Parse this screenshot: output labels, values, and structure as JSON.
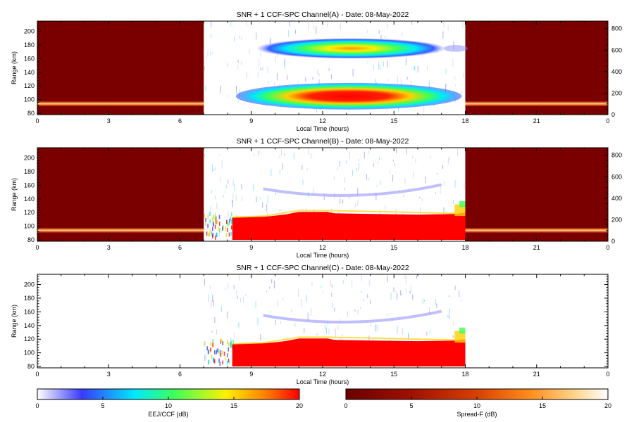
{
  "chart_data": [
    {
      "type": "heatmap",
      "title": "SNR + 1 CCF-SPC Channel(A) - Date: 08-May-2022",
      "xlabel": "Local Time (hours)",
      "ylabel": "Range (km)",
      "xlim": [
        0,
        24
      ],
      "ylim": [
        78,
        215
      ],
      "xticks": [
        "0",
        "3",
        "6",
        "9",
        "12",
        "15",
        "18",
        "21",
        "0"
      ],
      "yticks": [
        "80",
        "100",
        "120",
        "140",
        "160",
        "180",
        "200"
      ],
      "y2lim": [
        0,
        870
      ],
      "y2ticks": [
        "0",
        "200",
        "400",
        "600",
        "800"
      ],
      "regions": [
        {
          "kind": "spread-f",
          "x": [
            0,
            7
          ],
          "note_layer_range_km": [
            93,
            97
          ]
        },
        {
          "kind": "eej-ccf",
          "x": [
            7,
            18
          ]
        },
        {
          "kind": "spread-f",
          "x": [
            18,
            24
          ],
          "note_layer_range_km": [
            91,
            97
          ]
        }
      ]
    },
    {
      "type": "heatmap",
      "title": "SNR + 1 CCF-SPC Channel(B) - Date: 08-May-2022",
      "xlabel": "Local Time (hours)",
      "ylabel": "Range (km)",
      "xlim": [
        0,
        24
      ],
      "ylim": [
        78,
        215
      ],
      "xticks": [
        "0",
        "3",
        "6",
        "9",
        "12",
        "15",
        "18",
        "21",
        "0"
      ],
      "yticks": [
        "80",
        "100",
        "120",
        "140",
        "160",
        "180",
        "200"
      ],
      "y2lim": [
        0,
        870
      ],
      "y2ticks": [
        "0",
        "200",
        "400",
        "600",
        "800"
      ],
      "regions": [
        {
          "kind": "spread-f",
          "x": [
            0,
            7
          ]
        },
        {
          "kind": "eej-ccf",
          "x": [
            7,
            18
          ]
        },
        {
          "kind": "spread-f",
          "x": [
            18,
            24
          ]
        }
      ]
    },
    {
      "type": "heatmap",
      "title": "SNR + 1 CCF-SPC Channel(C) - Date: 08-May-2022",
      "xlabel": "Local Time (hours)",
      "ylabel": "Range (km)",
      "xlim": [
        0,
        24
      ],
      "ylim": [
        78,
        215
      ],
      "xticks": [
        "0",
        "3",
        "6",
        "9",
        "12",
        "15",
        "18",
        "21",
        "0"
      ],
      "yticks": [
        "80",
        "100",
        "120",
        "140",
        "160",
        "180",
        "200"
      ],
      "regions": [
        {
          "kind": "eej-ccf",
          "x": [
            7,
            18
          ]
        }
      ]
    }
  ],
  "colorbars": [
    {
      "label": "EEJ/CCF (dB)",
      "range": [
        0,
        20
      ],
      "ticks": [
        "0",
        "5",
        "10",
        "15",
        "20"
      ],
      "colormap": "white-blue-cyan-green-yellow-red",
      "stops": [
        "#ffffff",
        "#3a3aff",
        "#00e8ff",
        "#3cff5a",
        "#fff000",
        "#ff8000",
        "#ff0000"
      ]
    },
    {
      "label": "Spread-F (dB)",
      "range": [
        0,
        20
      ],
      "ticks": [
        "0",
        "5",
        "10",
        "15",
        "20"
      ],
      "colormap": "dark-red-orange-white",
      "stops": [
        "#6a0000",
        "#a01000",
        "#d84000",
        "#ff8c1a",
        "#ffd890",
        "#ffffff"
      ]
    }
  ],
  "colors": {
    "spread_f_background": "#7a0000",
    "eej_red": "#ff0000",
    "axis": "#000000"
  }
}
